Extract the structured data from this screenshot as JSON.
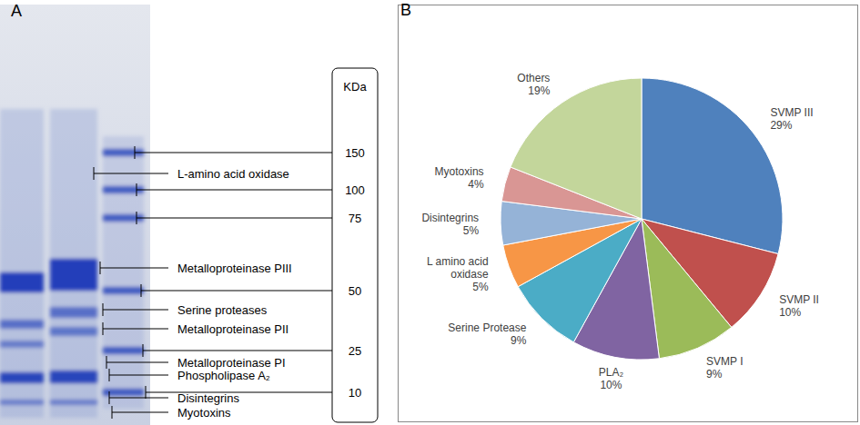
{
  "panel_labels": [
    "A",
    "B"
  ],
  "gel": {
    "unit_label": "KDa",
    "markers": [
      150,
      100,
      75,
      50,
      25,
      10
    ],
    "band_labels": [
      "L-amino acid oxidase",
      "Metalloproteinase PIII",
      "Serine proteases",
      "Metalloproteinase PII",
      "Metalloproteinase PI",
      "Phospholipase A₂",
      "Disintegrins",
      "Myotoxins"
    ]
  },
  "chart_data": {
    "type": "pie",
    "categories": [
      "SVMP III",
      "SVMP II",
      "SVMP I",
      "PLA₂",
      "Serine Protease",
      "L amino acid oxidase",
      "Disintegrins",
      "Myotoxins",
      "Others"
    ],
    "values": [
      29,
      10,
      9,
      10,
      9,
      5,
      5,
      4,
      19
    ],
    "value_labels": [
      "29%",
      "10%",
      "9%",
      "10%",
      "9%",
      "5%",
      "5%",
      "4%",
      "19%"
    ],
    "colors": [
      "#4F81BD",
      "#C0504D",
      "#9BBB59",
      "#8064A2",
      "#4BACC6",
      "#F79646",
      "#95B3D7",
      "#D99694",
      "#C3D69B"
    ]
  }
}
